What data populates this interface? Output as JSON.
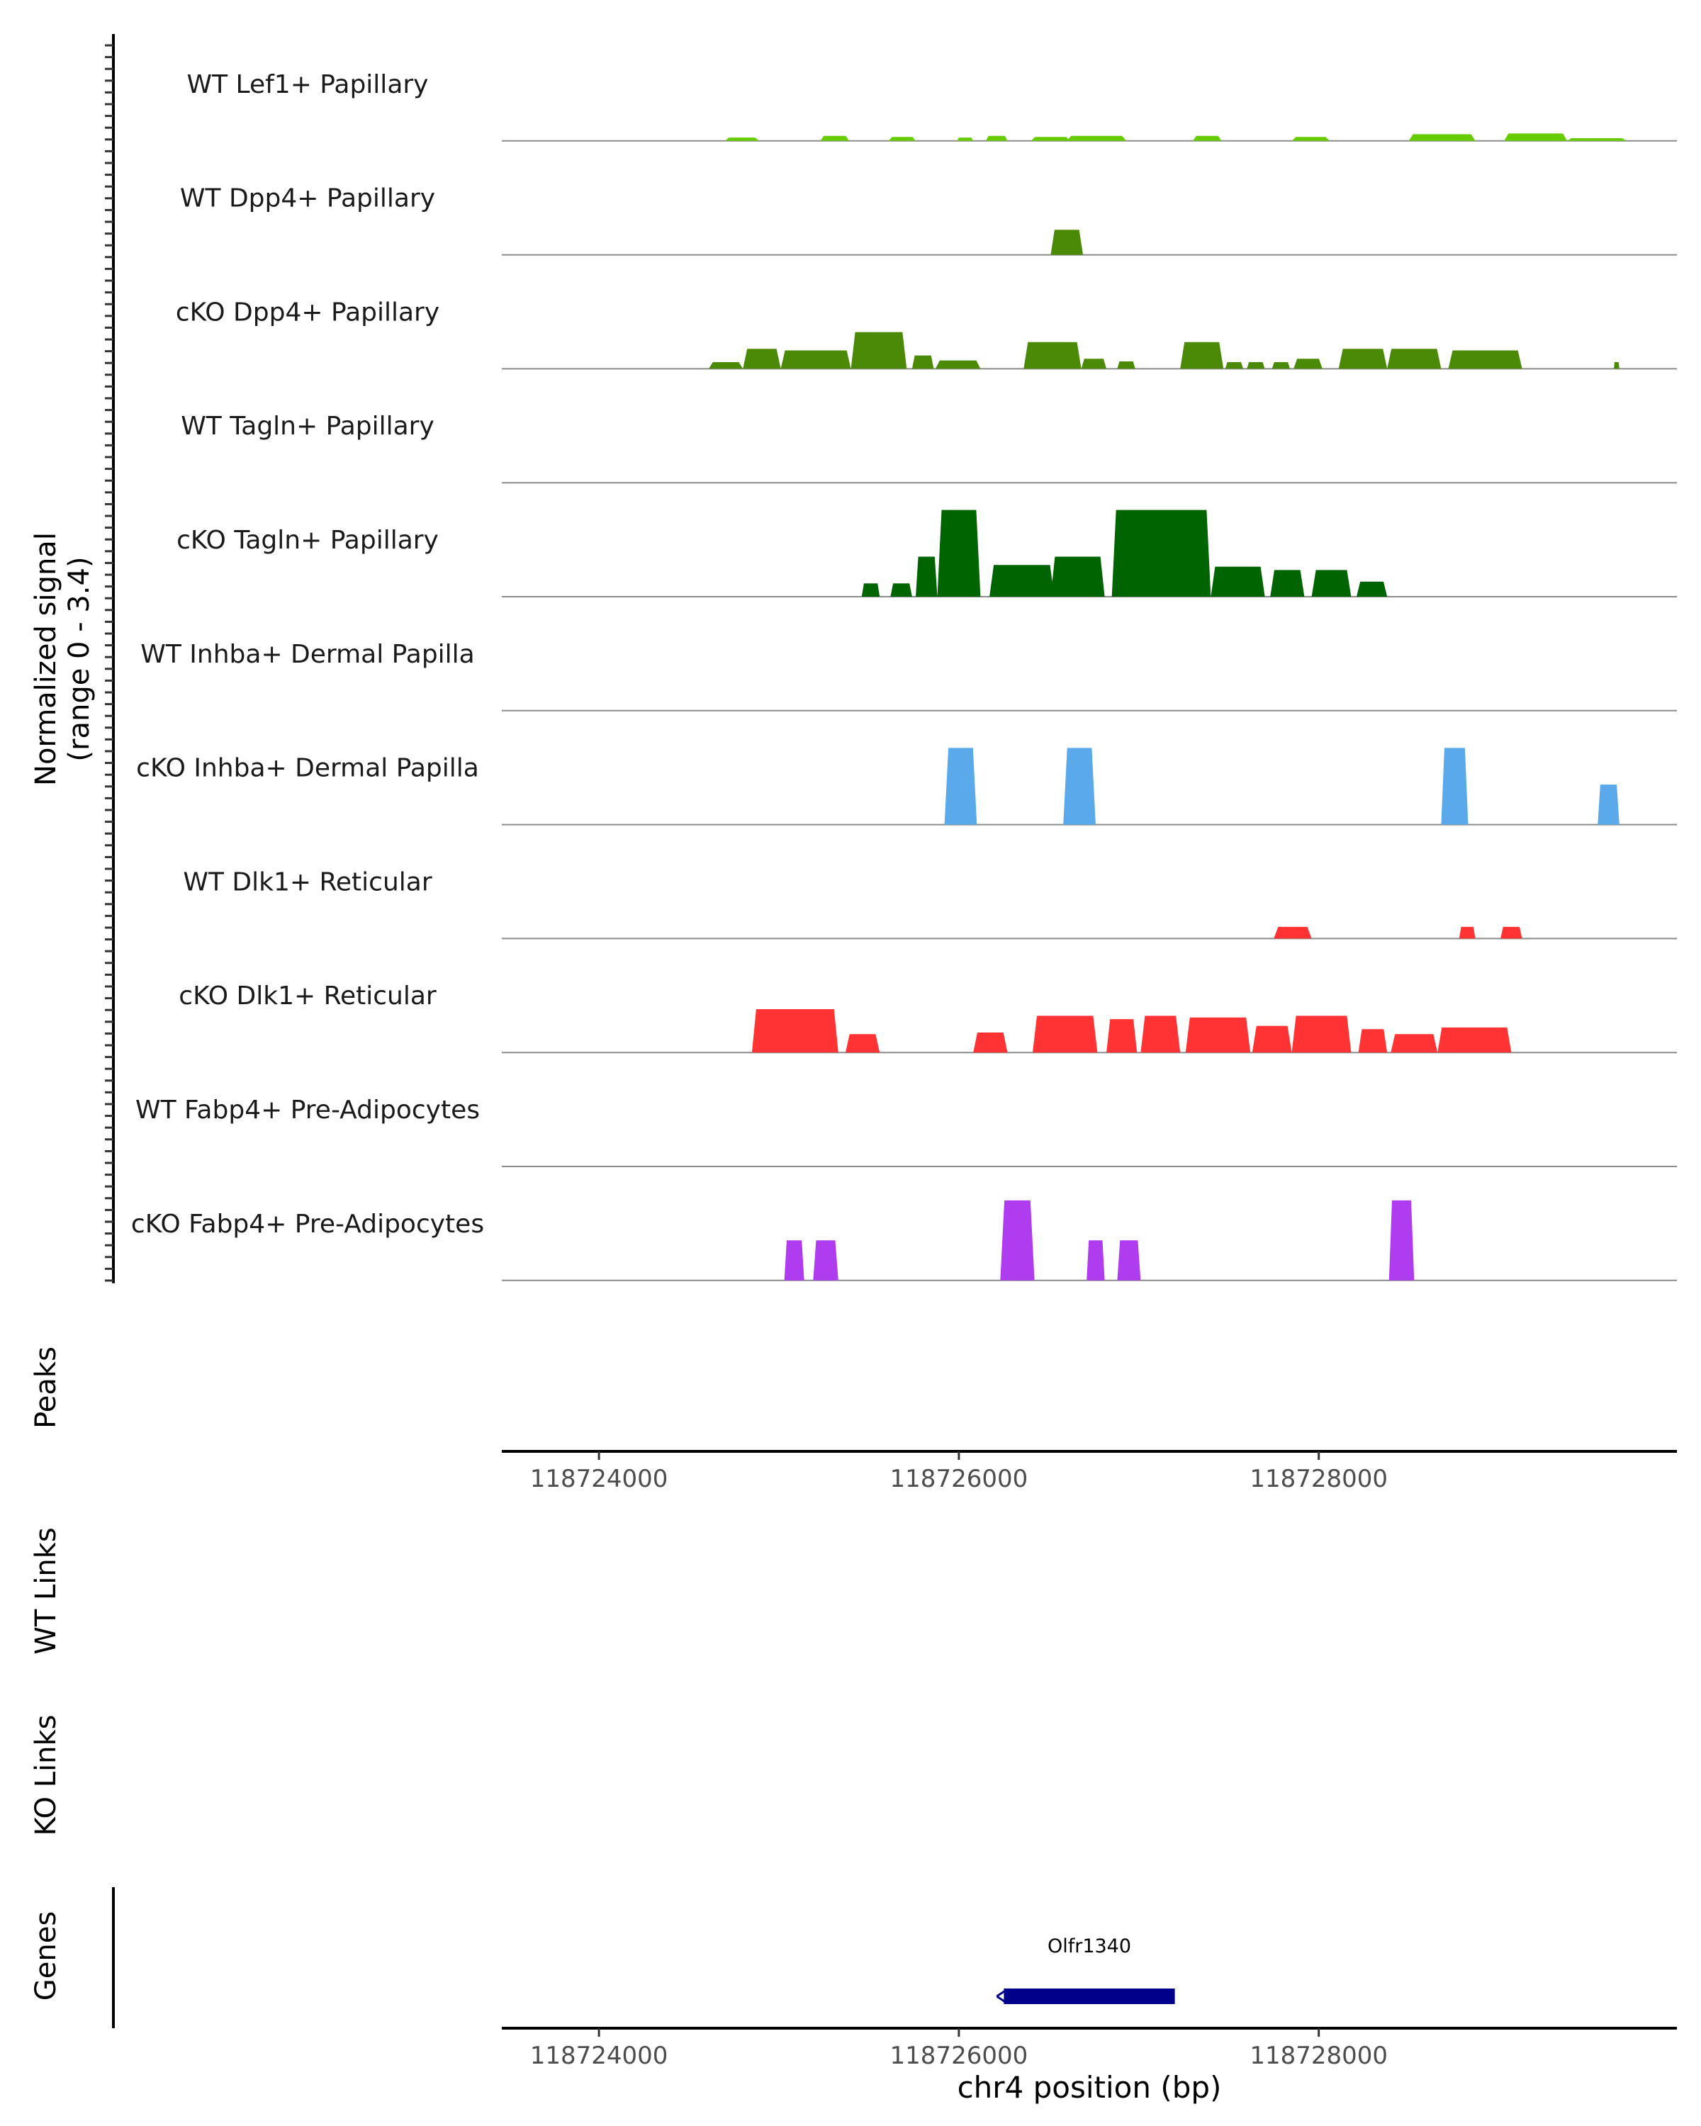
{
  "chart_data": {
    "type": "area",
    "title": "",
    "signal_axis_label": "Normalized signal",
    "signal_range_label": "(range 0 - 3.4)",
    "ylim": [
      0,
      3.4
    ],
    "xlim": [
      118723460,
      118729990
    ],
    "xlabel": "chr4 position (bp)",
    "x_ticks": [
      118724000,
      118726000,
      118728000
    ],
    "x_tick_labels": [
      "118724000",
      "118726000",
      "118728000"
    ],
    "tracks": [
      {
        "name": "WT Lef1+ Papillary",
        "color": "#66cc00",
        "peaks": [
          [
            118724700,
            118724890,
            0.1
          ],
          [
            118725230,
            118725390,
            0.15
          ],
          [
            118725610,
            118725760,
            0.12
          ],
          [
            118725990,
            118726080,
            0.1
          ],
          [
            118726150,
            118726270,
            0.15
          ],
          [
            118726400,
            118726620,
            0.12
          ],
          [
            118726600,
            118726930,
            0.15
          ],
          [
            118727300,
            118727460,
            0.15
          ],
          [
            118727850,
            118728060,
            0.12
          ],
          [
            118728500,
            118728870,
            0.2
          ],
          [
            118729030,
            118729380,
            0.22
          ],
          [
            118729380,
            118729710,
            0.08
          ]
        ]
      },
      {
        "name": "WT Dpp4+ Papillary",
        "color": "#4b8a06",
        "peaks": [
          [
            118726510,
            118726690,
            0.75
          ]
        ]
      },
      {
        "name": "cKO Dpp4+ Papillary",
        "color": "#4b8a06",
        "peaks": [
          [
            118724610,
            118724800,
            0.2
          ],
          [
            118724800,
            118725010,
            0.6
          ],
          [
            118725010,
            118725400,
            0.55
          ],
          [
            118725400,
            118725710,
            1.1
          ],
          [
            118725740,
            118725860,
            0.4
          ],
          [
            118725870,
            118726120,
            0.25
          ],
          [
            118726360,
            118726680,
            0.8
          ],
          [
            118726680,
            118726820,
            0.3
          ],
          [
            118726880,
            118726980,
            0.22
          ],
          [
            118727230,
            118727470,
            0.8
          ],
          [
            118727480,
            118727580,
            0.2
          ],
          [
            118727600,
            118727700,
            0.2
          ],
          [
            118727740,
            118727840,
            0.2
          ],
          [
            118727860,
            118728020,
            0.3
          ],
          [
            118728110,
            118728380,
            0.6
          ],
          [
            118728380,
            118728680,
            0.6
          ],
          [
            118728720,
            118729130,
            0.55
          ],
          [
            118729640,
            118729670,
            0.2
          ]
        ]
      },
      {
        "name": "WT Tagln+ Papillary",
        "color": "#006400",
        "peaks": []
      },
      {
        "name": "cKO Tagln+ Papillary",
        "color": "#006400",
        "peaks": [
          [
            118725460,
            118725560,
            0.4
          ],
          [
            118725620,
            118725740,
            0.4
          ],
          [
            118725760,
            118725880,
            1.2
          ],
          [
            118725880,
            118726120,
            2.6
          ],
          [
            118726170,
            118726530,
            0.95
          ],
          [
            118726510,
            118726810,
            1.2
          ],
          [
            118726850,
            118727400,
            2.6
          ],
          [
            118727400,
            118727700,
            0.9
          ],
          [
            118727730,
            118727920,
            0.8
          ],
          [
            118727960,
            118728180,
            0.8
          ],
          [
            118728210,
            118728380,
            0.45
          ]
        ]
      },
      {
        "name": "WT Inhba+ Dermal Papilla",
        "color": "#5aaaeb",
        "peaks": []
      },
      {
        "name": "cKO Inhba+ Dermal Papilla",
        "color": "#5aaaeb",
        "peaks": [
          [
            118725920,
            118726100,
            2.3
          ],
          [
            118726580,
            118726760,
            2.3
          ],
          [
            118728680,
            118728830,
            2.3
          ],
          [
            118729550,
            118729670,
            1.2
          ]
        ]
      },
      {
        "name": "WT Dlk1+ Reticular",
        "color": "#ff3333",
        "peaks": [
          [
            118727750,
            118727960,
            0.35
          ],
          [
            118728780,
            118728870,
            0.35
          ],
          [
            118729010,
            118729130,
            0.35
          ]
        ]
      },
      {
        "name": "cKO Dlk1+ Reticular",
        "color": "#ff3333",
        "peaks": [
          [
            118724850,
            118725330,
            1.3
          ],
          [
            118725370,
            118725560,
            0.55
          ],
          [
            118726080,
            118726270,
            0.6
          ],
          [
            118726410,
            118726770,
            1.1
          ],
          [
            118726820,
            118726990,
            1.0
          ],
          [
            118727010,
            118727230,
            1.1
          ],
          [
            118727260,
            118727620,
            1.05
          ],
          [
            118727630,
            118727850,
            0.8
          ],
          [
            118727850,
            118728180,
            1.1
          ],
          [
            118728220,
            118728380,
            0.7
          ],
          [
            118728400,
            118728660,
            0.55
          ],
          [
            118728660,
            118729070,
            0.75
          ]
        ]
      },
      {
        "name": "WT Fabp4+ Pre-Adipocytes",
        "color": "#b03cf0",
        "peaks": []
      },
      {
        "name": "cKO Fabp4+ Pre-Adipocytes",
        "color": "#b03cf0",
        "peaks": [
          [
            118725030,
            118725140,
            1.2
          ],
          [
            118725190,
            118725330,
            1.2
          ],
          [
            118726230,
            118726420,
            2.4
          ],
          [
            118726710,
            118726810,
            1.2
          ],
          [
            118726880,
            118727010,
            1.2
          ],
          [
            118728390,
            118728530,
            2.4
          ]
        ]
      }
    ],
    "peaks_track_label": "Peaks",
    "wt_links_label": "WT Links",
    "ko_links_label": "KO Links",
    "genes_track_label": "Genes",
    "genes": [
      {
        "name": "Olfr1340",
        "start": 118726250,
        "end": 118727200,
        "strand": "-",
        "color": "#00008b"
      }
    ]
  }
}
